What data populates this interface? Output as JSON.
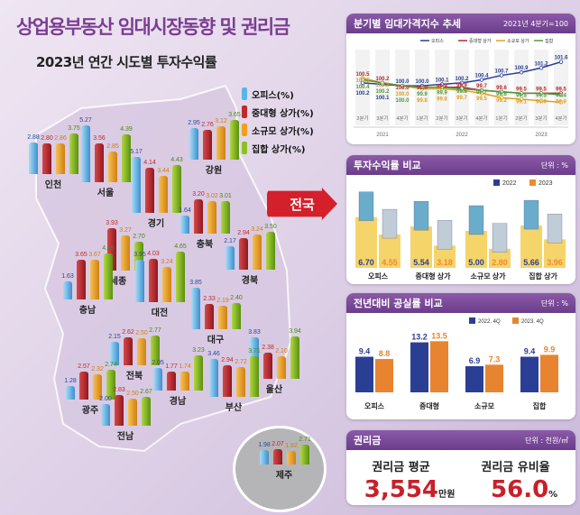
{
  "title": "상업용부동산 임대시장동향 및 권리금",
  "subtitle": "2023년 연간 시도별 투자수익률",
  "legend": [
    {
      "label": "오피스(%)",
      "color": "#5ab4e6"
    },
    {
      "label": "중대형 상가(%)",
      "color": "#c0282d"
    },
    {
      "label": "소규모 상가(%)",
      "color": "#f0a020"
    },
    {
      "label": "집합 상가(%)",
      "color": "#8cc020"
    }
  ],
  "nation_label": "전국",
  "regions": [
    {
      "name": "인천",
      "values": [
        2.88,
        2.8,
        2.86,
        3.75
      ]
    },
    {
      "name": "서울",
      "values": [
        5.27,
        3.56,
        2.85,
        4.39
      ]
    },
    {
      "name": "경기",
      "values": [
        5.17,
        4.14,
        3.44,
        4.43
      ]
    },
    {
      "name": "강원",
      "values": [
        2.95,
        2.76,
        3.12,
        3.65
      ]
    },
    {
      "name": "충북",
      "values": [
        1.64,
        3.2,
        3.02,
        3.01
      ]
    },
    {
      "name": "세종",
      "values": [
        null,
        3.93,
        3.27,
        2.7
      ]
    },
    {
      "name": "충남",
      "values": [
        1.63,
        3.65,
        3.67,
        4.25
      ]
    },
    {
      "name": "대전",
      "values": [
        3.95,
        4.03,
        3.24,
        4.65
      ]
    },
    {
      "name": "경북",
      "values": [
        2.17,
        2.94,
        3.24,
        3.5
      ]
    },
    {
      "name": "대구",
      "values": [
        3.85,
        2.33,
        2.19,
        2.4
      ]
    },
    {
      "name": "울산",
      "values": [
        3.83,
        2.38,
        2.1,
        3.94
      ]
    },
    {
      "name": "전북",
      "values": [
        2.15,
        2.62,
        2.5,
        2.77
      ]
    },
    {
      "name": "광주",
      "values": [
        1.28,
        2.57,
        2.32,
        2.74
      ]
    },
    {
      "name": "경남",
      "values": [
        2.05,
        1.77,
        1.74,
        3.23
      ]
    },
    {
      "name": "부산",
      "values": [
        3.46,
        2.94,
        2.72,
        3.71
      ]
    },
    {
      "name": "전남",
      "values": [
        2.0,
        2.83,
        2.5,
        2.67
      ]
    },
    {
      "name": "제주",
      "values": [
        1.98,
        2.07,
        1.92,
        2.71
      ]
    }
  ],
  "rent_index": {
    "title": "분기별 임대가격지수 추세",
    "note": "2021년 4분기=100",
    "chart_data": {
      "type": "line",
      "categories": [
        "2분기",
        "3분기",
        "4분기",
        "1분기",
        "2분기",
        "3분기",
        "4분기",
        "1분기",
        "2분기",
        "3분기",
        "4분기"
      ],
      "years": [
        "2021",
        "2022",
        "2023"
      ],
      "series": [
        {
          "name": "오피스",
          "color": "#2a3f94",
          "values": [
            100.2,
            100.1,
            100.0,
            100.0,
            100.1,
            100.2,
            100.4,
            100.7,
            100.9,
            101.2,
            101.6
          ]
        },
        {
          "name": "중대형 상가",
          "color": "#b8282d",
          "values": [
            100.5,
            100.2,
            100.0,
            99.9,
            99.9,
            99.9,
            99.7,
            99.6,
            99.5,
            99.5,
            99.5
          ]
        },
        {
          "name": "소규모 상가",
          "color": "#e0a020",
          "values": [
            100.5,
            100.2,
            100.0,
            99.8,
            99.8,
            99.7,
            99.5,
            99.2,
            99.1,
            99.0,
            98.9
          ]
        },
        {
          "name": "집합",
          "color": "#4e9a3a",
          "values": [
            100.4,
            100.2,
            100.0,
            99.9,
            99.9,
            99.8,
            99.7,
            99.6,
            99.5,
            99.5,
            99.4
          ]
        }
      ]
    }
  },
  "return_compare": {
    "title": "투자수익률 비교",
    "unit": "단위 : %",
    "chart_data": {
      "type": "bar",
      "categories": [
        "오피스",
        "중대형 상가",
        "소규모 상가",
        "집합 상가"
      ],
      "series": [
        {
          "name": "2022",
          "color": "#2a3f94",
          "values": [
            6.7,
            5.54,
            5.0,
            5.66
          ]
        },
        {
          "name": "2023",
          "color": "#f08a30",
          "values": [
            4.55,
            3.18,
            2.8,
            3.96
          ]
        }
      ]
    }
  },
  "vacancy_compare": {
    "title": "전년대비 공실률 비교",
    "unit": "단위 : %",
    "chart_data": {
      "type": "bar",
      "categories": [
        "오피스",
        "중대형",
        "소규모",
        "집합"
      ],
      "series": [
        {
          "name": "2022. 4Q",
          "color": "#2a3f94",
          "values": [
            9.4,
            13.2,
            6.9,
            9.4
          ]
        },
        {
          "name": "2023. 4Q",
          "color": "#e8842f",
          "values": [
            8.8,
            13.5,
            7.3,
            9.9
          ]
        }
      ]
    }
  },
  "premium": {
    "title": "권리금",
    "unit": "단위 : 천원/㎡",
    "avg_label": "권리금 평균",
    "avg_value": "3,554",
    "avg_unit": "만원",
    "ratio_label": "권리금 유비율",
    "ratio_value": "56.0",
    "ratio_unit": "%"
  }
}
